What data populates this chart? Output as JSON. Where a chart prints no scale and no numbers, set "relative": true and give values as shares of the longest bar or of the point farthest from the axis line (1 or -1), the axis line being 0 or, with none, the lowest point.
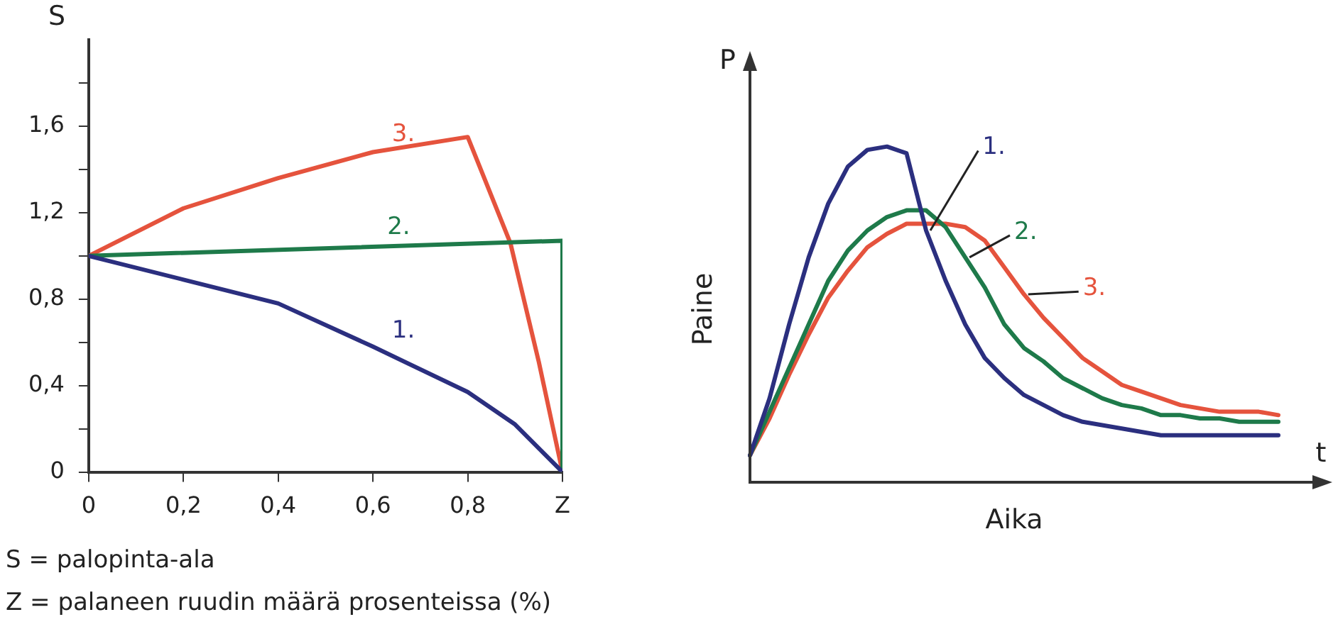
{
  "chart_data": [
    {
      "type": "line",
      "ylabel": "S",
      "xlim": [
        0,
        1
      ],
      "ylim": [
        0,
        2
      ],
      "xticks": [
        0,
        {
          "value": 0.2,
          "label": "0,2"
        },
        {
          "value": 0.4,
          "label": "0,4"
        },
        {
          "value": 0.6,
          "label": "0,6"
        },
        {
          "value": 0.8,
          "label": "0,8"
        },
        {
          "value": 1,
          "label": "Z"
        }
      ],
      "yticks": [
        0,
        {
          "value": 0.2,
          "label": null
        },
        {
          "value": 0.4,
          "label": "0,4"
        },
        {
          "value": 0.6,
          "label": null
        },
        {
          "value": 0.8,
          "label": "0,8"
        },
        {
          "value": 1.0,
          "label": null
        },
        {
          "value": 1.2,
          "label": "1,2"
        },
        {
          "value": 1.4,
          "label": null
        },
        {
          "value": 1.6,
          "label": "1,6"
        },
        {
          "value": 1.8,
          "label": null
        }
      ],
      "series": [
        {
          "name": "1.",
          "color": "#2b2f7f",
          "x": [
            0,
            0.2,
            0.4,
            0.6,
            0.8,
            0.9,
            1
          ],
          "values": [
            1.0,
            0.89,
            0.78,
            0.58,
            0.37,
            0.22,
            0
          ]
        },
        {
          "name": "2.",
          "color": "#1e7a4a",
          "x": [
            0,
            1,
            1
          ],
          "values": [
            1.0,
            1.07,
            0
          ]
        },
        {
          "name": "3.",
          "color": "#e5533d",
          "x": [
            0,
            0.2,
            0.4,
            0.6,
            0.8,
            0.89,
            0.95,
            1
          ],
          "values": [
            1.0,
            1.22,
            1.36,
            1.48,
            1.55,
            1.06,
            0.51,
            0
          ]
        }
      ],
      "grid": false,
      "legend": false,
      "marker": "none",
      "line_style": "solid",
      "annotations": [
        "S = palopinta-ala",
        "Z = palaneen ruudin määrä prosenteissa (%)"
      ]
    },
    {
      "type": "line",
      "relative": true,
      "xlabel": "Aika",
      "ylabel": "Paine",
      "categories": [
        null,
        null,
        null,
        null,
        null,
        null,
        null,
        null,
        null,
        null,
        null,
        null,
        null,
        null,
        null,
        null,
        null,
        null,
        null,
        null,
        null,
        null,
        null,
        null,
        null,
        null,
        null,
        null
      ],
      "series": [
        {
          "name": "1.",
          "color": "#2b2f7f",
          "values": [
            0.08,
            0.25,
            0.47,
            0.67,
            0.83,
            0.94,
            0.99,
            1.0,
            0.98,
            0.75,
            0.6,
            0.47,
            0.37,
            0.31,
            0.26,
            0.23,
            0.2,
            0.18,
            0.17,
            0.16,
            0.15,
            0.14,
            0.14,
            0.14,
            0.14,
            0.14,
            0.14,
            0.14
          ]
        },
        {
          "name": "2.",
          "color": "#1e7a4a",
          "values": [
            0.08,
            0.21,
            0.34,
            0.47,
            0.6,
            0.69,
            0.75,
            0.79,
            0.81,
            0.81,
            0.76,
            0.67,
            0.58,
            0.47,
            0.4,
            0.36,
            0.31,
            0.28,
            0.25,
            0.23,
            0.22,
            0.2,
            0.2,
            0.19,
            0.19,
            0.18,
            0.18,
            0.18
          ]
        },
        {
          "name": "3.",
          "color": "#e5533d",
          "values": [
            0.08,
            0.19,
            0.32,
            0.44,
            0.55,
            0.63,
            0.7,
            0.74,
            0.77,
            0.77,
            0.77,
            0.76,
            0.72,
            0.64,
            0.56,
            0.49,
            0.43,
            0.37,
            0.33,
            0.29,
            0.27,
            0.25,
            0.23,
            0.22,
            0.21,
            0.21,
            0.21,
            0.2
          ]
        }
      ],
      "grid": false,
      "legend": false,
      "marker": "none",
      "line_style": "solid",
      "annotations": [
        "P",
        "t"
      ]
    }
  ]
}
